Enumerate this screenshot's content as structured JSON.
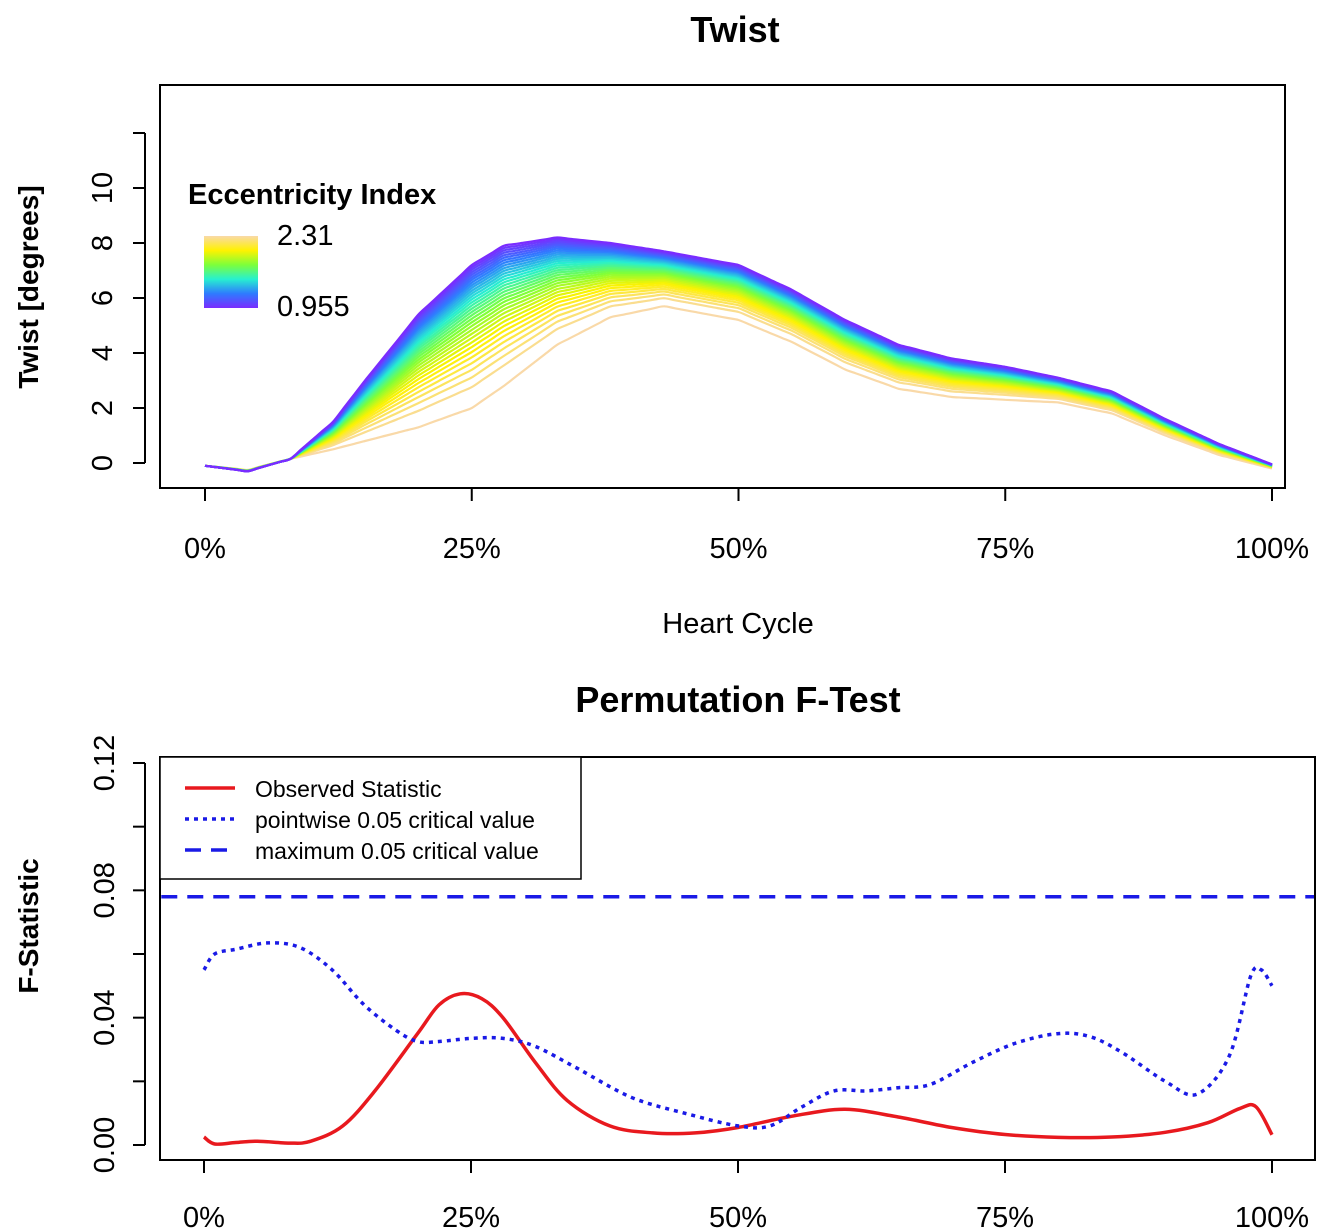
{
  "chart_data": [
    {
      "type": "line",
      "title": "Twist",
      "xlabel": "Heart Cycle",
      "ylabel": "Twist [degrees]",
      "x_tick_labels": [
        "0%",
        "25%",
        "50%",
        "75%",
        "100%"
      ],
      "x_tick_values": [
        0,
        25,
        50,
        75,
        100
      ],
      "y_ticks": [
        0,
        2,
        4,
        6,
        8,
        10
      ],
      "xlim": [
        0,
        100
      ],
      "ylim": [
        -1,
        12
      ],
      "grid": false,
      "legend": {
        "title": "Eccentricity Index",
        "max_label": "2.31",
        "min_label": "0.955",
        "placement": "top-left",
        "gradient_colors": [
          "#f9d9a8",
          "#fff200",
          "#7dff3a",
          "#27f0d0",
          "#2e7bff",
          "#7a2cff"
        ]
      },
      "curve_family": {
        "count": 34,
        "color_scale": [
          "#f9d9a8",
          "#fff200",
          "#7dff3a",
          "#27f0d0",
          "#2e7bff",
          "#7a2cff"
        ],
        "low_index_curve": {
          "x": [
            0,
            4,
            8,
            12,
            15,
            20,
            25,
            28,
            33,
            38,
            43,
            50,
            55,
            60,
            65,
            70,
            75,
            80,
            85,
            90,
            95,
            100
          ],
          "y": [
            -0.1,
            -0.3,
            0.15,
            1.5,
            3.0,
            5.4,
            7.2,
            7.9,
            8.2,
            8.0,
            7.7,
            7.2,
            6.3,
            5.2,
            4.3,
            3.8,
            3.5,
            3.1,
            2.6,
            1.6,
            0.7,
            -0.05
          ]
        },
        "high_index_curve": {
          "x": [
            0,
            4,
            8,
            12,
            15,
            20,
            25,
            28,
            33,
            38,
            43,
            50,
            55,
            60,
            65,
            70,
            75,
            80,
            85,
            90,
            95,
            100
          ],
          "y": [
            -0.1,
            -0.25,
            0.15,
            0.5,
            0.8,
            1.3,
            2.0,
            2.8,
            4.3,
            5.3,
            5.7,
            5.2,
            4.4,
            3.4,
            2.7,
            2.4,
            2.3,
            2.2,
            1.8,
            1.0,
            0.3,
            -0.2
          ]
        }
      }
    },
    {
      "type": "line",
      "title": "Permutation F-Test",
      "xlabel": "",
      "ylabel": "F-Statistic",
      "x_tick_labels": [
        "0%",
        "25%",
        "50%",
        "75%",
        "100%"
      ],
      "x_tick_values": [
        0,
        25,
        50,
        75,
        100
      ],
      "y_tick_labels": [
        "0.00",
        "0.04",
        "0.08",
        "0.12"
      ],
      "y_tick_values": [
        0,
        0.04,
        0.08,
        0.12
      ],
      "y_minor_ticks": [
        0.02,
        0.06,
        0.1
      ],
      "xlim": [
        0,
        100
      ],
      "ylim": [
        -0.01,
        0.125
      ],
      "grid": false,
      "legend_placement": "top-left",
      "series": [
        {
          "name": "Observed Statistic",
          "color": "#e8191e",
          "style": "solid",
          "x": [
            0,
            1,
            3,
            5,
            8,
            10,
            13,
            16,
            20,
            22,
            24,
            26,
            28,
            31,
            34,
            38,
            42,
            46,
            50,
            55,
            60,
            65,
            70,
            75,
            80,
            85,
            90,
            94,
            97,
            98.5,
            100
          ],
          "y": [
            0.0025,
            0.0003,
            0.0008,
            0.0012,
            0.0006,
            0.0012,
            0.006,
            0.017,
            0.035,
            0.044,
            0.0475,
            0.046,
            0.04,
            0.026,
            0.014,
            0.006,
            0.0038,
            0.0038,
            0.0055,
            0.009,
            0.0112,
            0.0088,
            0.0055,
            0.0033,
            0.0024,
            0.0025,
            0.004,
            0.007,
            0.0115,
            0.012,
            0.0032
          ]
        },
        {
          "name": "pointwise 0.05 critical value",
          "color": "#1a1ae6",
          "style": "dotted",
          "x": [
            0,
            1,
            3,
            6,
            9,
            12,
            15,
            18,
            20,
            22,
            25,
            28,
            31,
            35,
            40,
            45,
            50,
            53,
            56,
            59,
            62,
            65,
            68,
            72,
            76,
            80,
            83,
            86,
            90,
            93,
            96,
            98,
            99,
            100
          ],
          "y": [
            0.055,
            0.06,
            0.0615,
            0.0635,
            0.062,
            0.055,
            0.044,
            0.036,
            0.0325,
            0.0325,
            0.0335,
            0.0335,
            0.031,
            0.024,
            0.015,
            0.01,
            0.006,
            0.006,
            0.012,
            0.017,
            0.017,
            0.018,
            0.019,
            0.026,
            0.032,
            0.035,
            0.034,
            0.029,
            0.02,
            0.016,
            0.028,
            0.053,
            0.055,
            0.05
          ]
        },
        {
          "name": "maximum 0.05 critical value",
          "color": "#1a1ae6",
          "style": "dashed",
          "x": [
            -4,
            104
          ],
          "y": [
            0.078,
            0.078
          ]
        }
      ]
    }
  ]
}
